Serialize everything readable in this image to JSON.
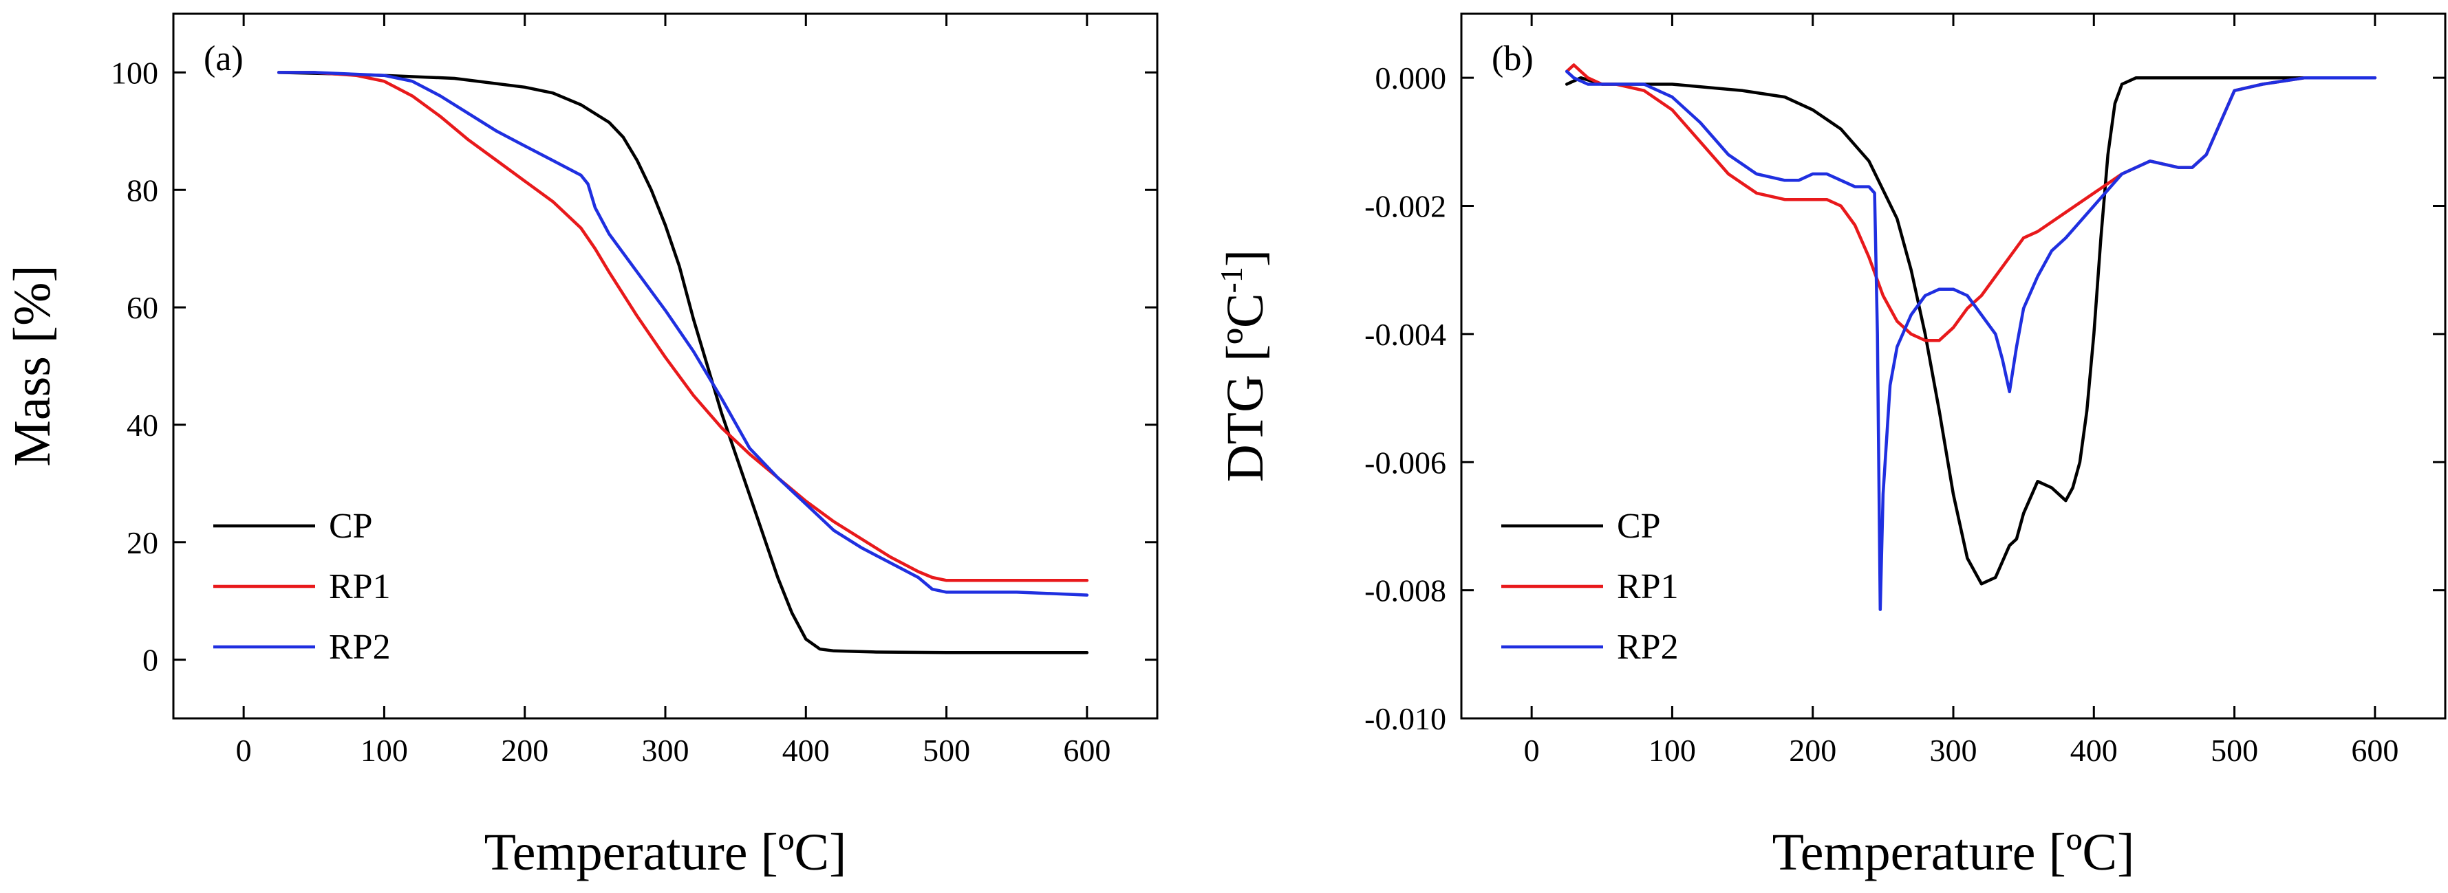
{
  "colors": {
    "CP": "#000000",
    "RP1": "#e8191b",
    "RP2": "#1f2fe0"
  },
  "chart_data": [
    {
      "type": "line",
      "panel_label": "(a)",
      "title": "",
      "xlabel": "Temperature [ºC]",
      "ylabel": "Mass [%]",
      "xlim": [
        -50,
        650
      ],
      "ylim": [
        -10,
        110
      ],
      "xticks": [
        0,
        100,
        200,
        300,
        400,
        500,
        600
      ],
      "yticks": [
        0,
        20,
        40,
        60,
        80,
        100
      ],
      "xtick_labels": [
        "0",
        "100",
        "200",
        "300",
        "400",
        "500",
        "600"
      ],
      "ytick_labels": [
        "0",
        "20",
        "40",
        "60",
        "80",
        "100"
      ],
      "legend": {
        "position": "bottom-left",
        "entries": [
          "CP",
          "RP1",
          "RP2"
        ]
      },
      "series": [
        {
          "name": "CP",
          "color_key": "CP",
          "x": [
            25,
            60,
            100,
            150,
            200,
            220,
            240,
            260,
            270,
            280,
            290,
            300,
            310,
            320,
            330,
            340,
            350,
            360,
            370,
            380,
            390,
            400,
            410,
            420,
            450,
            500,
            550,
            600
          ],
          "y": [
            100,
            99.8,
            99.5,
            99,
            97.5,
            96.5,
            94.5,
            91.5,
            89,
            85,
            80,
            74,
            67,
            58,
            50,
            42,
            35,
            28,
            21,
            14,
            8,
            3.5,
            1.8,
            1.5,
            1.3,
            1.2,
            1.2,
            1.2
          ]
        },
        {
          "name": "RP1",
          "color_key": "RP1",
          "x": [
            25,
            50,
            80,
            100,
            120,
            140,
            160,
            180,
            200,
            220,
            240,
            250,
            260,
            280,
            300,
            320,
            340,
            360,
            380,
            400,
            420,
            440,
            460,
            480,
            490,
            500,
            550,
            600
          ],
          "y": [
            100,
            100,
            99.5,
            98.5,
            96,
            92.5,
            88.5,
            85,
            81.5,
            78,
            73.5,
            70,
            66,
            58.5,
            51.5,
            45,
            39.5,
            35,
            31,
            27,
            23.5,
            20.5,
            17.5,
            15,
            14,
            13.5,
            13.5,
            13.5
          ]
        },
        {
          "name": "RP2",
          "color_key": "RP2",
          "x": [
            25,
            50,
            100,
            120,
            140,
            160,
            180,
            200,
            220,
            240,
            245,
            250,
            260,
            280,
            300,
            320,
            340,
            360,
            380,
            400,
            420,
            440,
            460,
            480,
            490,
            500,
            550,
            600
          ],
          "y": [
            100,
            100,
            99.5,
            98.5,
            96,
            93,
            90,
            87.5,
            85,
            82.5,
            81,
            77,
            72.5,
            66,
            59.5,
            52.5,
            44.5,
            36,
            31,
            26.5,
            22,
            19,
            16.5,
            14,
            12,
            11.5,
            11.5,
            11
          ]
        }
      ]
    },
    {
      "type": "line",
      "panel_label": "(b)",
      "title": "",
      "xlabel": "Temperature [ºC]",
      "ylabel": "DTG [ºC-1]",
      "ylabel_main": "DTG [ºC",
      "ylabel_sup": "-1",
      "ylabel_close": "]",
      "xlim": [
        -50,
        650
      ],
      "ylim": [
        -0.01,
        0.001
      ],
      "xticks": [
        0,
        100,
        200,
        300,
        400,
        500,
        600
      ],
      "yticks": [
        0,
        -0.002,
        -0.004,
        -0.006,
        -0.008,
        -0.01
      ],
      "xtick_labels": [
        "0",
        "100",
        "200",
        "300",
        "400",
        "500",
        "600"
      ],
      "ytick_labels": [
        "0.000",
        "-0.002",
        "-0.004",
        "-0.006",
        "-0.008",
        "-0.010"
      ],
      "legend": {
        "position": "bottom-left",
        "entries": [
          "CP",
          "RP1",
          "RP2"
        ]
      },
      "series": [
        {
          "name": "CP",
          "color_key": "CP",
          "x": [
            25,
            35,
            50,
            100,
            150,
            180,
            200,
            220,
            240,
            260,
            270,
            280,
            290,
            300,
            310,
            320,
            330,
            340,
            345,
            350,
            360,
            370,
            380,
            385,
            390,
            395,
            400,
            405,
            410,
            415,
            420,
            430,
            450,
            500,
            550,
            600
          ],
          "y": [
            -0.0001,
            0.0,
            -0.0001,
            -0.0001,
            -0.0002,
            -0.0003,
            -0.0005,
            -0.0008,
            -0.0013,
            -0.0022,
            -0.003,
            -0.004,
            -0.0052,
            -0.0065,
            -0.0075,
            -0.0079,
            -0.0078,
            -0.0073,
            -0.0072,
            -0.0068,
            -0.0063,
            -0.0064,
            -0.0066,
            -0.0064,
            -0.006,
            -0.0052,
            -0.004,
            -0.0025,
            -0.0012,
            -0.0004,
            -0.0001,
            0.0,
            0.0,
            0.0,
            0.0,
            0.0
          ]
        },
        {
          "name": "RP1",
          "color_key": "RP1",
          "x": [
            25,
            30,
            35,
            40,
            50,
            60,
            80,
            100,
            120,
            140,
            160,
            180,
            200,
            210,
            220,
            230,
            240,
            250,
            260,
            270,
            280,
            290,
            300,
            310,
            320,
            330,
            340,
            350,
            360,
            380,
            400,
            420,
            440,
            460,
            470,
            480,
            490,
            500,
            520,
            550,
            600
          ],
          "y": [
            0.0001,
            0.0002,
            0.0001,
            0.0,
            -0.0001,
            -0.0001,
            -0.0002,
            -0.0005,
            -0.001,
            -0.0015,
            -0.0018,
            -0.0019,
            -0.0019,
            -0.0019,
            -0.002,
            -0.0023,
            -0.0028,
            -0.0034,
            -0.0038,
            -0.004,
            -0.0041,
            -0.0041,
            -0.0039,
            -0.0036,
            -0.0034,
            -0.0031,
            -0.0028,
            -0.0025,
            -0.0024,
            -0.0021,
            -0.0018,
            -0.0015,
            -0.0013,
            -0.0014,
            -0.0014,
            -0.0012,
            -0.0007,
            -0.0002,
            -0.0001,
            0.0,
            0.0
          ]
        },
        {
          "name": "RP2",
          "color_key": "RP2",
          "x": [
            25,
            30,
            40,
            50,
            60,
            80,
            100,
            120,
            140,
            160,
            180,
            190,
            200,
            210,
            220,
            230,
            240,
            244,
            246,
            248,
            250,
            255,
            260,
            270,
            280,
            290,
            300,
            310,
            320,
            330,
            335,
            340,
            345,
            350,
            360,
            370,
            380,
            400,
            420,
            440,
            460,
            470,
            480,
            490,
            500,
            520,
            550,
            600
          ],
          "y": [
            0.0001,
            0.0,
            -0.0001,
            -0.0001,
            -0.0001,
            -0.0001,
            -0.0003,
            -0.0007,
            -0.0012,
            -0.0015,
            -0.0016,
            -0.0016,
            -0.0015,
            -0.0015,
            -0.0016,
            -0.0017,
            -0.0017,
            -0.0018,
            -0.004,
            -0.0083,
            -0.0065,
            -0.0048,
            -0.0042,
            -0.0037,
            -0.0034,
            -0.0033,
            -0.0033,
            -0.0034,
            -0.0037,
            -0.004,
            -0.0044,
            -0.0049,
            -0.0042,
            -0.0036,
            -0.0031,
            -0.0027,
            -0.0025,
            -0.002,
            -0.0015,
            -0.0013,
            -0.0014,
            -0.0014,
            -0.0012,
            -0.0007,
            -0.0002,
            -0.0001,
            0.0,
            0.0
          ]
        }
      ]
    }
  ]
}
